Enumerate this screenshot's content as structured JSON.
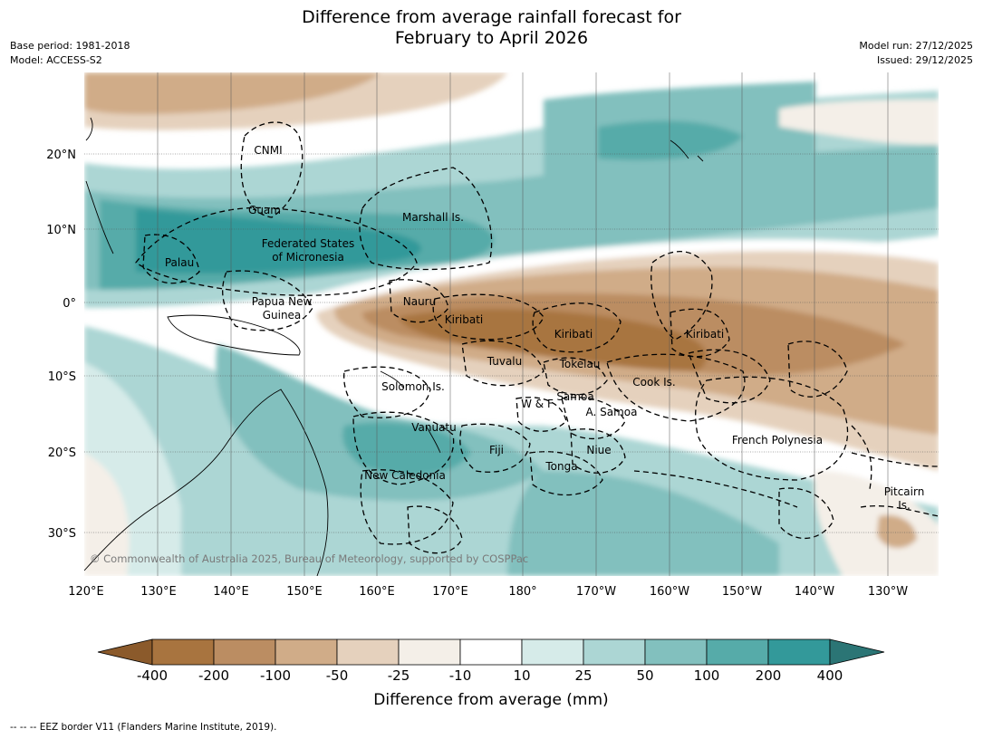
{
  "title": {
    "line1": "Difference from average rainfall forecast for",
    "line2": "February to April 2026"
  },
  "meta": {
    "base_period": "Base period: 1981-2018",
    "model": "Model: ACCESS-S2",
    "model_run": "Model run: 27/12/2025",
    "issued": "Issued: 29/12/2025"
  },
  "axes": {
    "lon_labels": [
      "120°E",
      "130°E",
      "140°E",
      "150°E",
      "160°E",
      "170°E",
      "180°",
      "170°W",
      "160°W",
      "150°W",
      "140°W",
      "130°W"
    ],
    "lat_labels": [
      "20°N",
      "10°N",
      "0°",
      "10°S",
      "20°S",
      "30°S"
    ]
  },
  "regions": [
    {
      "name": "CNMI"
    },
    {
      "name": "Guam"
    },
    {
      "name": "Marshall Is."
    },
    {
      "name": "Federated States"
    },
    {
      "name": "of Micronesia"
    },
    {
      "name": "Palau"
    },
    {
      "name": "Papua New"
    },
    {
      "name": "Guinea"
    },
    {
      "name": "Nauru"
    },
    {
      "name": "Kiribati"
    },
    {
      "name": "Kiribati"
    },
    {
      "name": "Kiribati"
    },
    {
      "name": "Tuvalu"
    },
    {
      "name": "Tokelau"
    },
    {
      "name": "Cook Is."
    },
    {
      "name": "Solomon Is."
    },
    {
      "name": "W & F"
    },
    {
      "name": "Samoa"
    },
    {
      "name": "A. Samoa"
    },
    {
      "name": "Vanuatu"
    },
    {
      "name": "Fiji"
    },
    {
      "name": "Niue"
    },
    {
      "name": "Tonga"
    },
    {
      "name": "New Caledonia"
    },
    {
      "name": "French Polynesia"
    },
    {
      "name": "Pitcairn"
    },
    {
      "name": "Is."
    }
  ],
  "copyright": "© Commonwealth of Australia 2025, Bureau of Meteorology, supported by COSPPac",
  "colorbar": {
    "title": "Difference from average (mm)",
    "labels": [
      "-400",
      "-200",
      "-100",
      "-50",
      "-25",
      "-10",
      "10",
      "25",
      "50",
      "100",
      "200",
      "400"
    ],
    "colors": [
      "#8b5a2b",
      "#a8743f",
      "#bb8d62",
      "#d0ac88",
      "#e5d1bd",
      "#f4efe8",
      "#ffffff",
      "#d6ebe9",
      "#acd6d4",
      "#82c0be",
      "#56aba9",
      "#33999a",
      "#2b7575"
    ]
  },
  "footnote": "--  --  -- EEZ border V11 (Flanders Marine Institute, 2019)."
}
